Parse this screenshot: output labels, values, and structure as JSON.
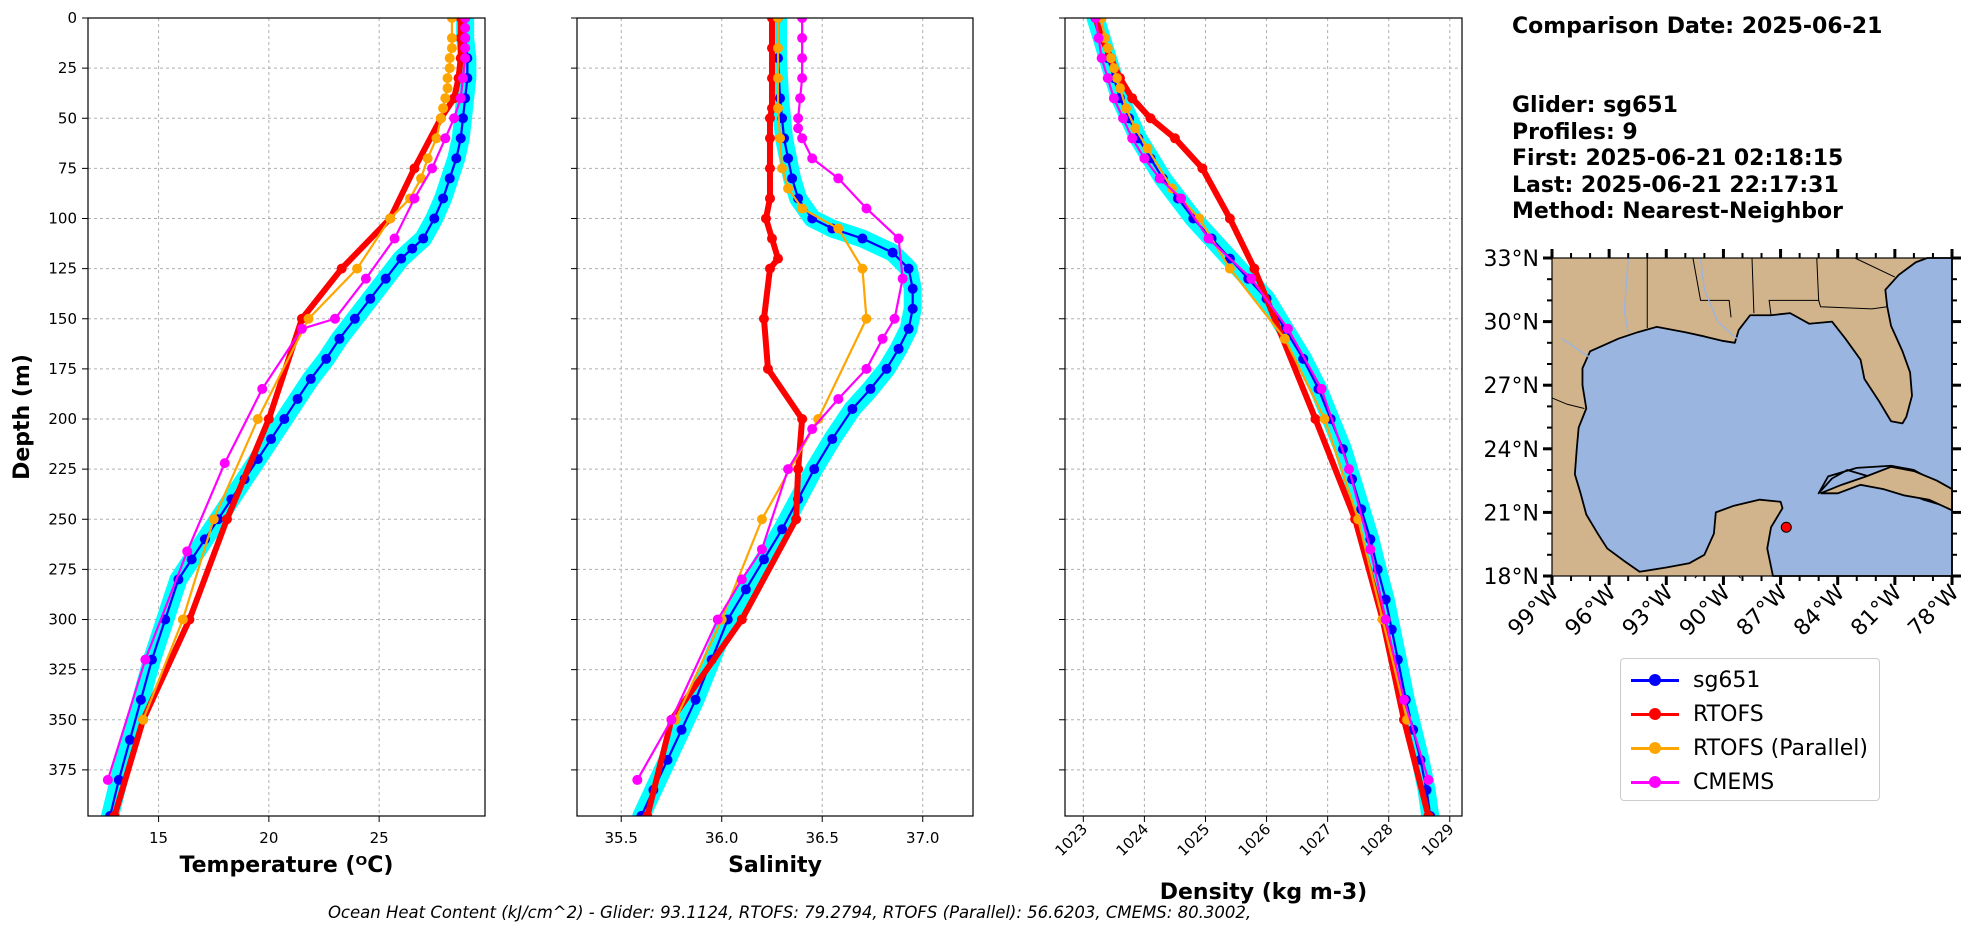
{
  "chart_data": [
    {
      "type": "line",
      "xlabel": "Temperature (ᴼC)",
      "ylabel": "Depth (m)",
      "xlim": [
        11.8,
        29.8
      ],
      "ylim": [
        398,
        0
      ],
      "xticks": [
        "15",
        "20",
        "25"
      ],
      "xtick_values": [
        15,
        20,
        25
      ],
      "yticks": [
        "0",
        "25",
        "50",
        "75",
        "100",
        "125",
        "150",
        "175",
        "200",
        "225",
        "250",
        "275",
        "300",
        "325",
        "350",
        "375"
      ],
      "ytick_values": [
        0,
        25,
        50,
        75,
        100,
        125,
        150,
        175,
        200,
        225,
        250,
        275,
        300,
        325,
        350,
        375
      ],
      "grid": true,
      "series": [
        {
          "name": "sg651",
          "color": "#0000ff",
          "band": "#00ffff",
          "x": [
            28.9,
            28.9,
            29.0,
            29.0,
            28.9,
            28.8,
            28.7,
            28.5,
            28.2,
            27.9,
            27.5,
            27.0,
            26.5,
            26.0,
            25.3,
            24.6,
            23.9,
            23.2,
            22.6,
            21.9,
            21.3,
            20.7,
            20.1,
            19.5,
            18.9,
            18.3,
            17.7,
            17.1,
            16.5,
            15.9,
            15.3,
            14.7,
            14.2,
            13.7,
            13.2,
            12.8
          ],
          "y": [
            0,
            10,
            20,
            30,
            40,
            50,
            60,
            70,
            80,
            90,
            100,
            110,
            115,
            120,
            130,
            140,
            150,
            160,
            170,
            180,
            190,
            200,
            210,
            220,
            230,
            240,
            250,
            260,
            270,
            280,
            300,
            320,
            340,
            360,
            380,
            398
          ]
        },
        {
          "name": "RTOFS",
          "color": "#ff0000",
          "width": 6,
          "x": [
            28.7,
            28.7,
            28.7,
            28.6,
            28.4,
            27.8,
            26.6,
            25.5,
            23.3,
            21.5,
            20.0,
            18.1,
            16.4,
            14.3,
            13.0
          ],
          "y": [
            0,
            10,
            20,
            30,
            40,
            50,
            75,
            100,
            125,
            150,
            200,
            250,
            300,
            350,
            398
          ]
        },
        {
          "name": "RTOFS (Parallel)",
          "color": "#ffa500",
          "x": [
            28.3,
            28.3,
            28.3,
            28.2,
            28.2,
            28.1,
            28.1,
            28.0,
            27.9,
            27.8,
            27.6,
            27.2,
            26.9,
            26.4,
            25.5,
            24.0,
            21.8,
            19.5,
            17.5,
            16.1,
            14.3
          ],
          "y": [
            0,
            10,
            15,
            20,
            25,
            30,
            35,
            40,
            45,
            50,
            60,
            70,
            80,
            90,
            100,
            125,
            150,
            200,
            250,
            300,
            350
          ]
        },
        {
          "name": "CMEMS",
          "color": "#ff00ff",
          "x": [
            28.9,
            28.9,
            28.9,
            28.9,
            28.9,
            28.8,
            28.7,
            28.4,
            28.0,
            27.4,
            26.6,
            25.7,
            24.4,
            23.0,
            21.5,
            19.7,
            18.0,
            16.3,
            14.4,
            12.7
          ],
          "y": [
            0,
            5,
            10,
            15,
            20,
            30,
            40,
            50,
            60,
            75,
            90,
            110,
            130,
            150,
            155,
            185,
            222,
            266,
            320,
            380
          ]
        }
      ]
    },
    {
      "type": "line",
      "xlabel": "Salinity",
      "ylabel": "",
      "xlim": [
        35.28,
        37.25
      ],
      "ylim": [
        398,
        0
      ],
      "xticks": [
        "35.5",
        "36.0",
        "36.5",
        "37.0"
      ],
      "xtick_values": [
        35.5,
        36.0,
        36.5,
        37.0
      ],
      "grid": true,
      "series": [
        {
          "name": "sg651",
          "color": "#0000ff",
          "band": "#00ffff",
          "x": [
            36.28,
            36.28,
            36.29,
            36.3,
            36.31,
            36.33,
            36.35,
            36.38,
            36.45,
            36.55,
            36.7,
            36.85,
            36.93,
            36.95,
            36.95,
            36.93,
            36.88,
            36.82,
            36.74,
            36.65,
            36.55,
            36.46,
            36.38,
            36.3,
            36.21,
            36.12,
            36.03,
            35.95,
            35.87,
            35.8,
            35.73,
            35.66,
            35.6
          ],
          "y": [
            0,
            20,
            40,
            50,
            60,
            70,
            80,
            90,
            100,
            105,
            110,
            117,
            125,
            135,
            145,
            155,
            165,
            175,
            185,
            195,
            210,
            225,
            240,
            255,
            270,
            285,
            300,
            320,
            340,
            355,
            370,
            385,
            398
          ]
        },
        {
          "name": "RTOFS",
          "color": "#ff0000",
          "width": 6,
          "x": [
            36.25,
            36.25,
            36.25,
            36.25,
            36.24,
            36.24,
            36.24,
            36.24,
            36.22,
            36.25,
            36.28,
            36.24,
            36.21,
            36.23,
            36.4,
            36.38,
            36.37,
            36.1,
            35.75,
            35.63
          ],
          "y": [
            0,
            15,
            30,
            45,
            50,
            60,
            75,
            90,
            100,
            110,
            120,
            125,
            150,
            175,
            200,
            225,
            250,
            300,
            350,
            398
          ]
        },
        {
          "name": "RTOFS (Parallel)",
          "color": "#ffa500",
          "x": [
            36.28,
            36.28,
            36.28,
            36.28,
            36.29,
            36.3,
            36.33,
            36.4,
            36.58,
            36.7,
            36.72,
            36.48,
            36.2,
            36.0,
            35.77
          ],
          "y": [
            0,
            15,
            30,
            45,
            60,
            75,
            85,
            95,
            105,
            125,
            150,
            200,
            250,
            300,
            350
          ]
        },
        {
          "name": "CMEMS",
          "color": "#ff00ff",
          "x": [
            36.4,
            36.4,
            36.4,
            36.4,
            36.39,
            36.38,
            36.38,
            36.4,
            36.45,
            36.58,
            36.72,
            36.88,
            36.9,
            36.86,
            36.8,
            36.72,
            36.58,
            36.45,
            36.33,
            36.2,
            36.1,
            35.98,
            35.75,
            35.58
          ],
          "y": [
            0,
            10,
            20,
            30,
            40,
            50,
            55,
            60,
            70,
            80,
            95,
            110,
            130,
            150,
            160,
            175,
            190,
            205,
            225,
            265,
            280,
            300,
            350,
            380
          ]
        }
      ]
    },
    {
      "type": "line",
      "xlabel": "Density (kg m-3)",
      "ylabel": "",
      "xlim": [
        1022.7,
        1029.2
      ],
      "ylim": [
        398,
        0
      ],
      "xticks": [
        "1023",
        "1024",
        "1025",
        "1026",
        "1027",
        "1028",
        "1029"
      ],
      "xtick_values": [
        1023,
        1024,
        1025,
        1026,
        1027,
        1028,
        1029
      ],
      "grid": true,
      "series": [
        {
          "name": "sg651",
          "color": "#0000ff",
          "band": "#00ffff",
          "x": [
            1023.2,
            1023.3,
            1023.4,
            1023.5,
            1023.6,
            1023.75,
            1023.9,
            1024.1,
            1024.3,
            1024.55,
            1024.8,
            1025.1,
            1025.4,
            1025.7,
            1026.0,
            1026.3,
            1026.6,
            1026.85,
            1027.05,
            1027.25,
            1027.4,
            1027.55,
            1027.7,
            1027.82,
            1027.95,
            1028.05,
            1028.15,
            1028.28,
            1028.4,
            1028.52,
            1028.62,
            1028.68
          ],
          "y": [
            0,
            10,
            20,
            30,
            40,
            50,
            60,
            70,
            80,
            90,
            100,
            110,
            120,
            130,
            140,
            155,
            170,
            185,
            200,
            215,
            230,
            245,
            260,
            275,
            290,
            305,
            320,
            340,
            355,
            370,
            385,
            398
          ]
        },
        {
          "name": "RTOFS",
          "color": "#ff0000",
          "width": 6,
          "x": [
            1023.2,
            1023.3,
            1023.45,
            1023.6,
            1023.8,
            1024.1,
            1024.5,
            1024.95,
            1025.4,
            1025.8,
            1026.8,
            1027.45,
            1027.9,
            1028.25,
            1028.65
          ],
          "y": [
            0,
            10,
            20,
            30,
            40,
            50,
            60,
            75,
            100,
            125,
            200,
            250,
            300,
            350,
            398
          ]
        },
        {
          "name": "RTOFS (Parallel)",
          "color": "#ffa500",
          "x": [
            1023.3,
            1023.35,
            1023.4,
            1023.45,
            1023.5,
            1023.55,
            1023.6,
            1023.7,
            1023.85,
            1024.05,
            1024.45,
            1024.9,
            1025.4,
            1026.3,
            1026.95,
            1027.5,
            1027.9,
            1028.3
          ],
          "y": [
            0,
            10,
            15,
            20,
            25,
            30,
            35,
            45,
            55,
            65,
            85,
            100,
            125,
            160,
            200,
            250,
            300,
            350
          ]
        },
        {
          "name": "CMEMS",
          "color": "#ff00ff",
          "x": [
            1023.2,
            1023.25,
            1023.3,
            1023.4,
            1023.5,
            1023.65,
            1023.8,
            1024.0,
            1024.25,
            1024.6,
            1025.05,
            1025.75,
            1026.35,
            1026.9,
            1027.35,
            1027.7,
            1027.95,
            1028.25,
            1028.65
          ],
          "y": [
            0,
            10,
            20,
            30,
            40,
            50,
            60,
            70,
            80,
            90,
            110,
            130,
            155,
            185,
            225,
            265,
            300,
            340,
            380
          ]
        }
      ]
    },
    {
      "type": "map",
      "lon_range": [
        -99,
        -78
      ],
      "lat_range": [
        18,
        33
      ],
      "xticks": [
        "99°W",
        "96°W",
        "93°W",
        "90°W",
        "87°W",
        "84°W",
        "81°W",
        "78°W"
      ],
      "yticks": [
        "33°N",
        "30°N",
        "27°N",
        "24°N",
        "21°N",
        "18°N"
      ],
      "land_color": "#d2b48c",
      "water_color": "#99b5e0",
      "marker": {
        "lon": -86.7,
        "lat": 20.3,
        "color": "#ff0000"
      }
    }
  ],
  "info": {
    "date": "Comparison Date: 2025-06-21",
    "glider": "Glider: sg651",
    "profiles": "Profiles: 9",
    "first": "First: 2025-06-21 02:18:15",
    "last": "Last: 2025-06-21 22:17:31",
    "method": "Method: Nearest-Neighbor"
  },
  "legend": [
    {
      "label": "sg651",
      "color": "#0000ff"
    },
    {
      "label": "RTOFS",
      "color": "#ff0000"
    },
    {
      "label": "RTOFS (Parallel)",
      "color": "#ffa500"
    },
    {
      "label": "CMEMS",
      "color": "#ff00ff"
    }
  ],
  "footer": "Ocean Heat Content (kJ/cm^2) - Glider: 93.1124,  RTOFS: 79.2794,  RTOFS (Parallel): 56.6203,  CMEMS: 80.3002,"
}
